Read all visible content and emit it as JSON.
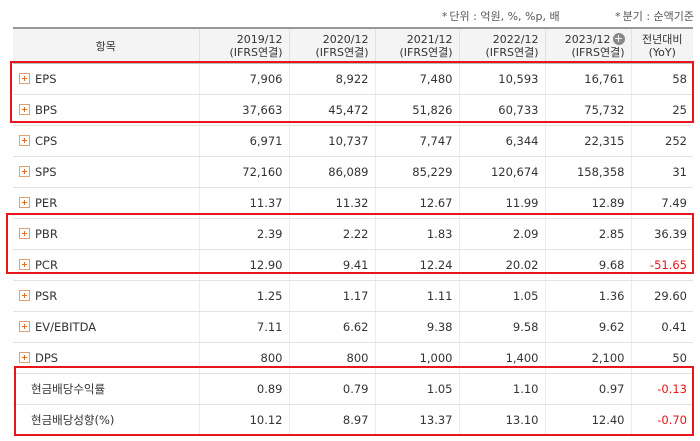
{
  "notes": {
    "unit": "단위 : 억원, %, %p, 배",
    "period": "분기 : 순액기준"
  },
  "header": {
    "item": "항목",
    "columns": [
      {
        "line1": "2019/12",
        "line2": "(IFRS연결)"
      },
      {
        "line1": "2020/12",
        "line2": "(IFRS연결)"
      },
      {
        "line1": "2021/12",
        "line2": "(IFRS연결)"
      },
      {
        "line1": "2022/12",
        "line2": "(IFRS연결)"
      },
      {
        "line1": "2023/12",
        "line2": "(IFRS연결)"
      },
      {
        "line1": "전년대비",
        "line2": "(YoY)"
      }
    ]
  },
  "rows": [
    {
      "label": "EPS",
      "icon": true,
      "values": [
        "7,906",
        "8,922",
        "7,480",
        "10,593",
        "16,761",
        "58"
      ],
      "neg": false
    },
    {
      "label": "BPS",
      "icon": true,
      "values": [
        "37,663",
        "45,472",
        "51,826",
        "60,733",
        "75,732",
        "25"
      ],
      "neg": false
    },
    {
      "label": "CPS",
      "icon": true,
      "values": [
        "6,971",
        "10,737",
        "7,747",
        "6,344",
        "22,315",
        "252"
      ],
      "neg": false
    },
    {
      "label": "SPS",
      "icon": true,
      "values": [
        "72,160",
        "86,089",
        "85,229",
        "120,674",
        "158,358",
        "31"
      ],
      "neg": false
    },
    {
      "label": "PER",
      "icon": true,
      "values": [
        "11.37",
        "11.32",
        "12.67",
        "11.99",
        "12.89",
        "7.49"
      ],
      "neg": false
    },
    {
      "label": "PBR",
      "icon": true,
      "values": [
        "2.39",
        "2.22",
        "1.83",
        "2.09",
        "2.85",
        "36.39"
      ],
      "neg": false
    },
    {
      "label": "PCR",
      "icon": true,
      "values": [
        "12.90",
        "9.41",
        "12.24",
        "20.02",
        "9.68",
        "-51.65"
      ],
      "neg": true
    },
    {
      "label": "PSR",
      "icon": true,
      "values": [
        "1.25",
        "1.17",
        "1.11",
        "1.05",
        "1.36",
        "29.60"
      ],
      "neg": false
    },
    {
      "label": "EV/EBITDA",
      "icon": true,
      "values": [
        "7.11",
        "6.62",
        "9.38",
        "9.58",
        "9.62",
        "0.41"
      ],
      "neg": false
    },
    {
      "label": "DPS",
      "icon": true,
      "values": [
        "800",
        "800",
        "1,000",
        "1,400",
        "2,100",
        "50"
      ],
      "neg": false
    },
    {
      "label": "현금배당수익률",
      "icon": false,
      "values": [
        "0.89",
        "0.79",
        "1.05",
        "1.10",
        "0.97",
        "-0.13"
      ],
      "neg": true
    },
    {
      "label": "현금배당성향(%)",
      "icon": false,
      "values": [
        "10.12",
        "8.97",
        "13.37",
        "13.10",
        "12.40",
        "-0.70"
      ],
      "neg": true
    }
  ],
  "colors": {
    "highlight": "#e8161a",
    "negative": "#e8161a",
    "icon": "#e07020"
  }
}
